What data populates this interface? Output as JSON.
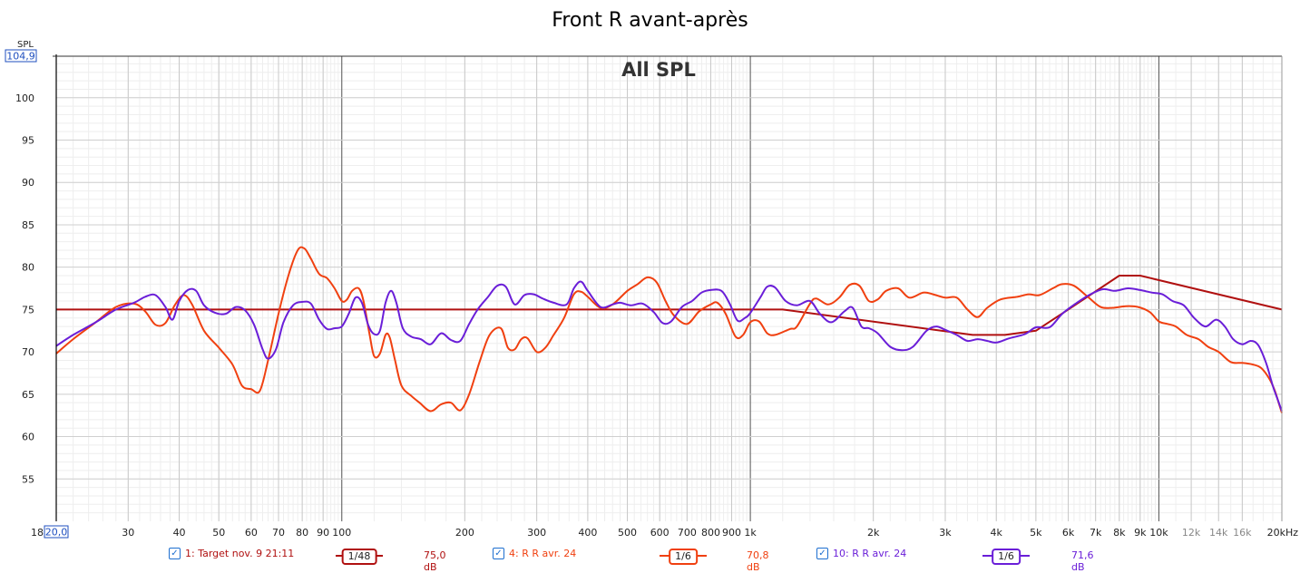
{
  "title": "Front R avant-après",
  "chart_data": {
    "type": "line",
    "title": "Front R avant-après",
    "overlay_label": "All SPL",
    "ylabel": "SPL",
    "x_scale": "log",
    "xlim": [
      18,
      20000
    ],
    "ylim": [
      50,
      104.9
    ],
    "y_max_readout": "104,9",
    "x_min_readout": "20,0",
    "y_ticks": [
      55,
      60,
      65,
      70,
      75,
      80,
      85,
      90,
      95,
      100
    ],
    "x_ticks": [
      {
        "v": 18,
        "label": "18"
      },
      {
        "v": 30,
        "label": "30"
      },
      {
        "v": 40,
        "label": "40"
      },
      {
        "v": 50,
        "label": "50"
      },
      {
        "v": 60,
        "label": "60"
      },
      {
        "v": 70,
        "label": "70"
      },
      {
        "v": 80,
        "label": "80"
      },
      {
        "v": 90,
        "label": "90"
      },
      {
        "v": 100,
        "label": "100"
      },
      {
        "v": 200,
        "label": "200"
      },
      {
        "v": 300,
        "label": "300"
      },
      {
        "v": 400,
        "label": "400"
      },
      {
        "v": 500,
        "label": "500"
      },
      {
        "v": 600,
        "label": "600"
      },
      {
        "v": 700,
        "label": "700"
      },
      {
        "v": 800,
        "label": "800"
      },
      {
        "v": 900,
        "label": "900"
      },
      {
        "v": 1000,
        "label": "1k"
      },
      {
        "v": 2000,
        "label": "2k"
      },
      {
        "v": 3000,
        "label": "3k"
      },
      {
        "v": 4000,
        "label": "4k"
      },
      {
        "v": 5000,
        "label": "5k"
      },
      {
        "v": 6000,
        "label": "6k"
      },
      {
        "v": 7000,
        "label": "7k"
      },
      {
        "v": 8000,
        "label": "8k"
      },
      {
        "v": 9000,
        "label": "9k"
      },
      {
        "v": 10000,
        "label": "10k"
      },
      {
        "v": 12000,
        "label": "12k",
        "minor": true
      },
      {
        "v": 14000,
        "label": "14k",
        "minor": true
      },
      {
        "v": 16000,
        "label": "16k",
        "minor": true
      },
      {
        "v": 20000,
        "label": "20kHz"
      }
    ],
    "grid": true,
    "series": [
      {
        "name": "1: Target nov. 9 21:11",
        "color": "#b01010",
        "smoothing": "1/48",
        "level": "75,0 dB",
        "points": [
          [
            20,
            75
          ],
          [
            1200,
            75
          ],
          [
            3500,
            72
          ],
          [
            4200,
            72
          ],
          [
            5000,
            72.5
          ],
          [
            6000,
            75
          ],
          [
            8000,
            79
          ],
          [
            9000,
            79
          ],
          [
            20000,
            75
          ]
        ]
      },
      {
        "name": "4: R R avr. 24",
        "color": "#f04010",
        "smoothing": "1/6",
        "level": "70,8 dB",
        "points": [
          [
            20,
            69.8
          ],
          [
            22,
            71.5
          ],
          [
            25,
            73.5
          ],
          [
            28,
            75.3
          ],
          [
            31,
            75.7
          ],
          [
            33,
            74.8
          ],
          [
            35,
            73.2
          ],
          [
            37,
            73.4
          ],
          [
            39,
            75.5
          ],
          [
            41,
            76.7
          ],
          [
            43,
            75.6
          ],
          [
            46,
            72.5
          ],
          [
            50,
            70.5
          ],
          [
            54,
            68.5
          ],
          [
            57,
            66
          ],
          [
            60,
            65.6
          ],
          [
            63,
            65.4
          ],
          [
            66,
            69
          ],
          [
            70,
            74.5
          ],
          [
            74,
            79
          ],
          [
            78,
            82
          ],
          [
            81,
            82.2
          ],
          [
            84,
            81
          ],
          [
            88,
            79.2
          ],
          [
            92,
            78.7
          ],
          [
            96,
            77.5
          ],
          [
            100,
            76
          ],
          [
            103,
            76.2
          ],
          [
            106,
            77.2
          ],
          [
            110,
            77.5
          ],
          [
            113,
            76
          ],
          [
            117,
            72
          ],
          [
            120,
            69.5
          ],
          [
            124,
            69.8
          ],
          [
            128,
            72
          ],
          [
            131,
            71.7
          ],
          [
            135,
            69
          ],
          [
            140,
            66
          ],
          [
            148,
            64.8
          ],
          [
            155,
            64
          ],
          [
            165,
            63
          ],
          [
            175,
            63.8
          ],
          [
            185,
            64
          ],
          [
            195,
            63.1
          ],
          [
            205,
            65
          ],
          [
            218,
            69
          ],
          [
            230,
            72
          ],
          [
            245,
            72.8
          ],
          [
            255,
            70.5
          ],
          [
            265,
            70.3
          ],
          [
            275,
            71.5
          ],
          [
            285,
            71.6
          ],
          [
            300,
            70
          ],
          [
            315,
            70.5
          ],
          [
            330,
            72
          ],
          [
            350,
            74
          ],
          [
            370,
            76.8
          ],
          [
            385,
            77.1
          ],
          [
            400,
            76.5
          ],
          [
            430,
            75.2
          ],
          [
            460,
            75.6
          ],
          [
            500,
            77.2
          ],
          [
            530,
            78
          ],
          [
            560,
            78.8
          ],
          [
            590,
            78.2
          ],
          [
            620,
            76
          ],
          [
            650,
            74.3
          ],
          [
            700,
            73.3
          ],
          [
            750,
            74.8
          ],
          [
            800,
            75.6
          ],
          [
            830,
            75.8
          ],
          [
            870,
            74.5
          ],
          [
            920,
            71.8
          ],
          [
            960,
            72
          ],
          [
            1000,
            73.5
          ],
          [
            1050,
            73.6
          ],
          [
            1100,
            72.2
          ],
          [
            1150,
            72
          ],
          [
            1250,
            72.7
          ],
          [
            1300,
            73
          ],
          [
            1400,
            75.7
          ],
          [
            1450,
            76.3
          ],
          [
            1550,
            75.6
          ],
          [
            1650,
            76.4
          ],
          [
            1750,
            77.9
          ],
          [
            1850,
            77.8
          ],
          [
            1950,
            76
          ],
          [
            2050,
            76.2
          ],
          [
            2150,
            77.2
          ],
          [
            2300,
            77.5
          ],
          [
            2450,
            76.4
          ],
          [
            2650,
            77
          ],
          [
            2800,
            76.8
          ],
          [
            3000,
            76.4
          ],
          [
            3200,
            76.4
          ],
          [
            3400,
            75
          ],
          [
            3600,
            74.1
          ],
          [
            3800,
            75.2
          ],
          [
            4100,
            76.2
          ],
          [
            4500,
            76.5
          ],
          [
            4800,
            76.8
          ],
          [
            5100,
            76.7
          ],
          [
            5500,
            77.5
          ],
          [
            5800,
            78
          ],
          [
            6200,
            77.8
          ],
          [
            6700,
            76.5
          ],
          [
            7200,
            75.3
          ],
          [
            7700,
            75.2
          ],
          [
            8300,
            75.4
          ],
          [
            8900,
            75.3
          ],
          [
            9500,
            74.7
          ],
          [
            10000,
            73.6
          ],
          [
            10500,
            73.3
          ],
          [
            11000,
            73
          ],
          [
            11700,
            72
          ],
          [
            12500,
            71.5
          ],
          [
            13200,
            70.6
          ],
          [
            14000,
            70
          ],
          [
            15000,
            68.8
          ],
          [
            16000,
            68.7
          ],
          [
            17000,
            68.5
          ],
          [
            17800,
            68.1
          ],
          [
            18600,
            66.9
          ],
          [
            19200,
            65.5
          ],
          [
            19700,
            63.8
          ],
          [
            20000,
            62.8
          ]
        ]
      },
      {
        "name": "10: R R avr. 24",
        "color": "#6a1ed8",
        "smoothing": "1/6",
        "level": "71,6 dB",
        "points": [
          [
            20,
            70.7
          ],
          [
            22,
            72
          ],
          [
            25,
            73.5
          ],
          [
            28,
            75
          ],
          [
            31,
            75.8
          ],
          [
            33,
            76.5
          ],
          [
            35,
            76.7
          ],
          [
            37,
            75.3
          ],
          [
            38.5,
            73.8
          ],
          [
            40,
            76
          ],
          [
            42,
            77.3
          ],
          [
            44,
            77.2
          ],
          [
            46,
            75.5
          ],
          [
            49,
            74.6
          ],
          [
            52,
            74.5
          ],
          [
            55,
            75.3
          ],
          [
            58,
            74.9
          ],
          [
            61,
            73.2
          ],
          [
            64,
            70.3
          ],
          [
            66,
            69.2
          ],
          [
            69,
            70.3
          ],
          [
            72,
            73.5
          ],
          [
            76,
            75.5
          ],
          [
            80,
            75.9
          ],
          [
            84,
            75.7
          ],
          [
            88,
            73.8
          ],
          [
            92,
            72.7
          ],
          [
            96,
            72.8
          ],
          [
            100,
            73
          ],
          [
            104,
            74.5
          ],
          [
            108,
            76.4
          ],
          [
            112,
            75.8
          ],
          [
            116,
            73.2
          ],
          [
            120,
            72.1
          ],
          [
            124,
            72.5
          ],
          [
            128,
            75.8
          ],
          [
            132,
            77.2
          ],
          [
            136,
            75.8
          ],
          [
            141,
            72.8
          ],
          [
            148,
            71.8
          ],
          [
            156,
            71.5
          ],
          [
            165,
            70.9
          ],
          [
            175,
            72.2
          ],
          [
            185,
            71.4
          ],
          [
            195,
            71.3
          ],
          [
            205,
            73.3
          ],
          [
            215,
            75
          ],
          [
            228,
            76.5
          ],
          [
            240,
            77.8
          ],
          [
            252,
            77.7
          ],
          [
            265,
            75.6
          ],
          [
            280,
            76.7
          ],
          [
            295,
            76.8
          ],
          [
            310,
            76.3
          ],
          [
            330,
            75.8
          ],
          [
            355,
            75.6
          ],
          [
            370,
            77.5
          ],
          [
            385,
            78.3
          ],
          [
            400,
            77.2
          ],
          [
            430,
            75.3
          ],
          [
            460,
            75.6
          ],
          [
            480,
            75.8
          ],
          [
            510,
            75.5
          ],
          [
            545,
            75.7
          ],
          [
            580,
            74.7
          ],
          [
            610,
            73.4
          ],
          [
            640,
            73.6
          ],
          [
            680,
            75.3
          ],
          [
            720,
            76
          ],
          [
            760,
            77
          ],
          [
            800,
            77.3
          ],
          [
            850,
            77.2
          ],
          [
            890,
            75.7
          ],
          [
            930,
            73.7
          ],
          [
            970,
            74
          ],
          [
            1000,
            74.6
          ],
          [
            1060,
            76.5
          ],
          [
            1100,
            77.7
          ],
          [
            1150,
            77.6
          ],
          [
            1220,
            76
          ],
          [
            1300,
            75.5
          ],
          [
            1400,
            76
          ],
          [
            1480,
            74.5
          ],
          [
            1580,
            73.5
          ],
          [
            1700,
            74.8
          ],
          [
            1780,
            75.2
          ],
          [
            1870,
            73
          ],
          [
            1950,
            72.8
          ],
          [
            2050,
            72.2
          ],
          [
            2200,
            70.6
          ],
          [
            2350,
            70.2
          ],
          [
            2500,
            70.6
          ],
          [
            2700,
            72.5
          ],
          [
            2850,
            73
          ],
          [
            3000,
            72.6
          ],
          [
            3200,
            72
          ],
          [
            3400,
            71.3
          ],
          [
            3600,
            71.5
          ],
          [
            3800,
            71.3
          ],
          [
            4000,
            71.1
          ],
          [
            4300,
            71.6
          ],
          [
            4700,
            72.1
          ],
          [
            5000,
            72.9
          ],
          [
            5400,
            72.9
          ],
          [
            5800,
            74.5
          ],
          [
            6300,
            75.8
          ],
          [
            6800,
            76.8
          ],
          [
            7300,
            77.4
          ],
          [
            7800,
            77.2
          ],
          [
            8400,
            77.5
          ],
          [
            9000,
            77.3
          ],
          [
            9600,
            77
          ],
          [
            10200,
            76.8
          ],
          [
            10800,
            76
          ],
          [
            11500,
            75.5
          ],
          [
            12200,
            74
          ],
          [
            13000,
            73
          ],
          [
            13800,
            73.8
          ],
          [
            14500,
            73
          ],
          [
            15200,
            71.5
          ],
          [
            16000,
            70.9
          ],
          [
            16800,
            71.3
          ],
          [
            17500,
            70.8
          ],
          [
            18300,
            68.7
          ],
          [
            19000,
            66
          ],
          [
            19600,
            64.2
          ],
          [
            20000,
            63
          ]
        ]
      }
    ]
  }
}
